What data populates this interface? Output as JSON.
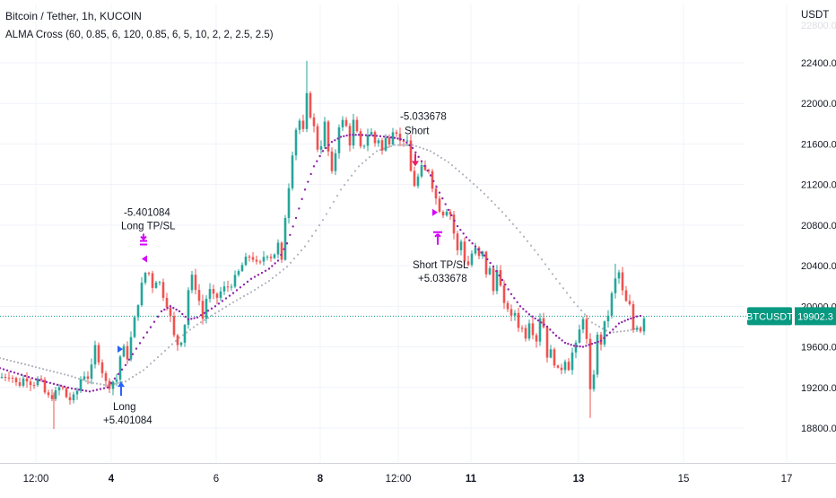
{
  "header": {
    "title": "Bitcoin / Tether, 1h, KUCOIN",
    "indicator": "ALMA Cross (60, 0.85, 6, 120, 0.85, 6, 5, 10, 2, 2, 2.5, 2.5)",
    "currency": "USDT"
  },
  "price_badges": {
    "symbol": "BTCUSDT",
    "last_price": "19902.3"
  },
  "colors": {
    "up_candle": "#26a69a",
    "down_candle": "#ef5350",
    "fast_alma": "#8e24aa",
    "slow_alma": "#b2b5be",
    "signal_arrow_long": "#2962ff",
    "signal_arrow_short": "#e91e63",
    "tp_sl_marker": "#d500f9",
    "price_line": "#089981"
  },
  "chart_data": {
    "type": "candlestick",
    "symbol": "BTCUSDT",
    "exchange": "KUCOIN",
    "timeframe": "1h",
    "ylim": [
      18500,
      22700
    ],
    "y_ticks": [
      "22400.0",
      "22000.0",
      "21600.0",
      "21200.0",
      "20800.0",
      "20400.0",
      "20000.0",
      "19600.0",
      "19200.0",
      "18800.0"
    ],
    "x_ticks": [
      "12:00",
      "4",
      "6",
      "8",
      "12:00",
      "11",
      "13",
      "15",
      "17"
    ],
    "bold_x_ticks": [
      "4",
      "8",
      "11",
      "13"
    ],
    "last_price": 19902.3,
    "close_path": [
      [
        0,
        19300
      ],
      [
        12,
        19330
      ],
      [
        20,
        19210
      ],
      [
        28,
        19310
      ],
      [
        36,
        19230
      ],
      [
        44,
        19290
      ],
      [
        52,
        19100
      ],
      [
        60,
        19120
      ],
      [
        68,
        19220
      ],
      [
        76,
        19070
      ],
      [
        84,
        19110
      ],
      [
        92,
        19340
      ],
      [
        100,
        19290
      ],
      [
        106,
        19600
      ],
      [
        114,
        19360
      ],
      [
        120,
        19190
      ],
      [
        124,
        19250
      ],
      [
        130,
        19280
      ],
      [
        136,
        19620
      ],
      [
        142,
        19500
      ],
      [
        150,
        19870
      ],
      [
        158,
        20210
      ],
      [
        164,
        20390
      ],
      [
        170,
        20200
      ],
      [
        176,
        20290
      ],
      [
        182,
        20110
      ],
      [
        188,
        19980
      ],
      [
        194,
        19700
      ],
      [
        200,
        19590
      ],
      [
        206,
        19830
      ],
      [
        212,
        20330
      ],
      [
        220,
        20140
      ],
      [
        226,
        19880
      ],
      [
        232,
        20180
      ],
      [
        240,
        20060
      ],
      [
        248,
        20170
      ],
      [
        256,
        20200
      ],
      [
        264,
        20300
      ],
      [
        272,
        20440
      ],
      [
        280,
        20510
      ],
      [
        288,
        20380
      ],
      [
        296,
        20530
      ],
      [
        304,
        20480
      ],
      [
        310,
        20610
      ],
      [
        314,
        20430
      ],
      [
        318,
        20890
      ],
      [
        322,
        21190
      ],
      [
        326,
        21520
      ],
      [
        330,
        21750
      ],
      [
        334,
        21830
      ],
      [
        338,
        21720
      ],
      [
        342,
        22070
      ],
      [
        346,
        21890
      ],
      [
        350,
        21760
      ],
      [
        354,
        21560
      ],
      [
        358,
        21600
      ],
      [
        362,
        21800
      ],
      [
        366,
        21520
      ],
      [
        370,
        21300
      ],
      [
        374,
        21520
      ],
      [
        378,
        21790
      ],
      [
        382,
        21820
      ],
      [
        386,
        21770
      ],
      [
        390,
        21610
      ],
      [
        394,
        21820
      ],
      [
        398,
        21700
      ],
      [
        402,
        21550
      ],
      [
        406,
        21600
      ],
      [
        410,
        21700
      ],
      [
        414,
        21710
      ],
      [
        418,
        21610
      ],
      [
        422,
        21650
      ],
      [
        426,
        21530
      ],
      [
        430,
        21650
      ],
      [
        434,
        21630
      ],
      [
        438,
        21750
      ],
      [
        442,
        21730
      ],
      [
        446,
        21620
      ],
      [
        450,
        21650
      ],
      [
        454,
        21600
      ],
      [
        458,
        21330
      ],
      [
        462,
        21200
      ],
      [
        466,
        21270
      ],
      [
        470,
        21360
      ],
      [
        474,
        21330
      ],
      [
        478,
        21350
      ],
      [
        482,
        21190
      ],
      [
        486,
        21060
      ],
      [
        490,
        20960
      ],
      [
        494,
        20920
      ],
      [
        498,
        20960
      ],
      [
        502,
        20910
      ],
      [
        506,
        20720
      ],
      [
        510,
        20540
      ],
      [
        514,
        20640
      ],
      [
        518,
        20460
      ],
      [
        522,
        20410
      ],
      [
        526,
        20520
      ],
      [
        530,
        20560
      ],
      [
        534,
        20480
      ],
      [
        538,
        20520
      ],
      [
        542,
        20330
      ],
      [
        546,
        20360
      ],
      [
        550,
        20150
      ],
      [
        554,
        20390
      ],
      [
        558,
        20190
      ],
      [
        562,
        20000
      ],
      [
        566,
        19990
      ],
      [
        570,
        19880
      ],
      [
        574,
        19940
      ],
      [
        578,
        19810
      ],
      [
        582,
        19780
      ],
      [
        586,
        19710
      ],
      [
        590,
        19860
      ],
      [
        594,
        19750
      ],
      [
        598,
        19670
      ],
      [
        602,
        19900
      ],
      [
        606,
        19800
      ],
      [
        610,
        19520
      ],
      [
        614,
        19550
      ],
      [
        618,
        19450
      ],
      [
        622,
        19360
      ],
      [
        626,
        19390
      ],
      [
        630,
        19480
      ],
      [
        634,
        19400
      ],
      [
        638,
        19540
      ],
      [
        642,
        19610
      ],
      [
        646,
        19760
      ],
      [
        650,
        19900
      ],
      [
        654,
        19660
      ],
      [
        658,
        19150
      ],
      [
        662,
        19350
      ],
      [
        666,
        19700
      ],
      [
        670,
        19640
      ],
      [
        674,
        19820
      ],
      [
        678,
        19920
      ],
      [
        682,
        20110
      ],
      [
        686,
        20260
      ],
      [
        690,
        20330
      ],
      [
        694,
        20140
      ],
      [
        698,
        20040
      ],
      [
        702,
        20000
      ],
      [
        706,
        19770
      ],
      [
        710,
        19810
      ],
      [
        714,
        19770
      ],
      [
        718,
        19902.3
      ]
    ],
    "fast_alma": [
      [
        0,
        19390
      ],
      [
        40,
        19280
      ],
      [
        80,
        19190
      ],
      [
        100,
        19160
      ],
      [
        120,
        19200
      ],
      [
        140,
        19420
      ],
      [
        160,
        19690
      ],
      [
        180,
        19950
      ],
      [
        190,
        20000
      ],
      [
        200,
        19950
      ],
      [
        210,
        19870
      ],
      [
        220,
        19890
      ],
      [
        240,
        20000
      ],
      [
        260,
        20130
      ],
      [
        280,
        20270
      ],
      [
        300,
        20370
      ],
      [
        310,
        20450
      ],
      [
        320,
        20620
      ],
      [
        330,
        20870
      ],
      [
        340,
        21150
      ],
      [
        350,
        21380
      ],
      [
        360,
        21530
      ],
      [
        370,
        21620
      ],
      [
        380,
        21670
      ],
      [
        390,
        21690
      ],
      [
        400,
        21690
      ],
      [
        420,
        21680
      ],
      [
        440,
        21660
      ],
      [
        450,
        21640
      ],
      [
        460,
        21560
      ],
      [
        470,
        21430
      ],
      [
        480,
        21290
      ],
      [
        490,
        21120
      ],
      [
        500,
        20950
      ],
      [
        510,
        20790
      ],
      [
        520,
        20680
      ],
      [
        530,
        20590
      ],
      [
        540,
        20500
      ],
      [
        550,
        20390
      ],
      [
        560,
        20260
      ],
      [
        570,
        20120
      ],
      [
        580,
        20000
      ],
      [
        590,
        19920
      ],
      [
        600,
        19860
      ],
      [
        610,
        19800
      ],
      [
        620,
        19710
      ],
      [
        630,
        19640
      ],
      [
        640,
        19610
      ],
      [
        650,
        19600
      ],
      [
        660,
        19630
      ],
      [
        670,
        19660
      ],
      [
        680,
        19740
      ],
      [
        690,
        19830
      ],
      [
        700,
        19870
      ],
      [
        710,
        19900
      ],
      [
        718,
        19910
      ]
    ],
    "slow_alma": [
      [
        0,
        19490
      ],
      [
        40,
        19400
      ],
      [
        80,
        19310
      ],
      [
        100,
        19250
      ],
      [
        120,
        19220
      ],
      [
        140,
        19260
      ],
      [
        160,
        19370
      ],
      [
        180,
        19530
      ],
      [
        200,
        19690
      ],
      [
        220,
        19820
      ],
      [
        240,
        19930
      ],
      [
        260,
        20040
      ],
      [
        280,
        20140
      ],
      [
        300,
        20250
      ],
      [
        320,
        20390
      ],
      [
        340,
        20590
      ],
      [
        360,
        20850
      ],
      [
        380,
        21150
      ],
      [
        400,
        21380
      ],
      [
        420,
        21530
      ],
      [
        440,
        21590
      ],
      [
        460,
        21590
      ],
      [
        480,
        21530
      ],
      [
        500,
        21420
      ],
      [
        520,
        21270
      ],
      [
        540,
        21110
      ],
      [
        560,
        20930
      ],
      [
        580,
        20730
      ],
      [
        600,
        20510
      ],
      [
        620,
        20270
      ],
      [
        640,
        20040
      ],
      [
        660,
        19840
      ],
      [
        680,
        19740
      ],
      [
        700,
        19760
      ],
      [
        718,
        19800
      ]
    ],
    "x_domain": [
      0,
      932
    ]
  },
  "signals": [
    {
      "kind": "long-entry",
      "label_line1": "Long",
      "label_line2": "+5.401084",
      "x": 135,
      "price": 19100
    },
    {
      "kind": "long-exit",
      "label_line1": "-5.401084",
      "label_line2": "Long TP/SL",
      "x": 160,
      "price": 20520
    },
    {
      "kind": "short-entry",
      "label_line1": "-5.033678",
      "label_line2": "Short",
      "x": 463,
      "price": 21450
    },
    {
      "kind": "short-exit",
      "label_line1": "Short TP/SL",
      "label_line2": "+5.033678",
      "x": 488,
      "price": 20730
    }
  ]
}
